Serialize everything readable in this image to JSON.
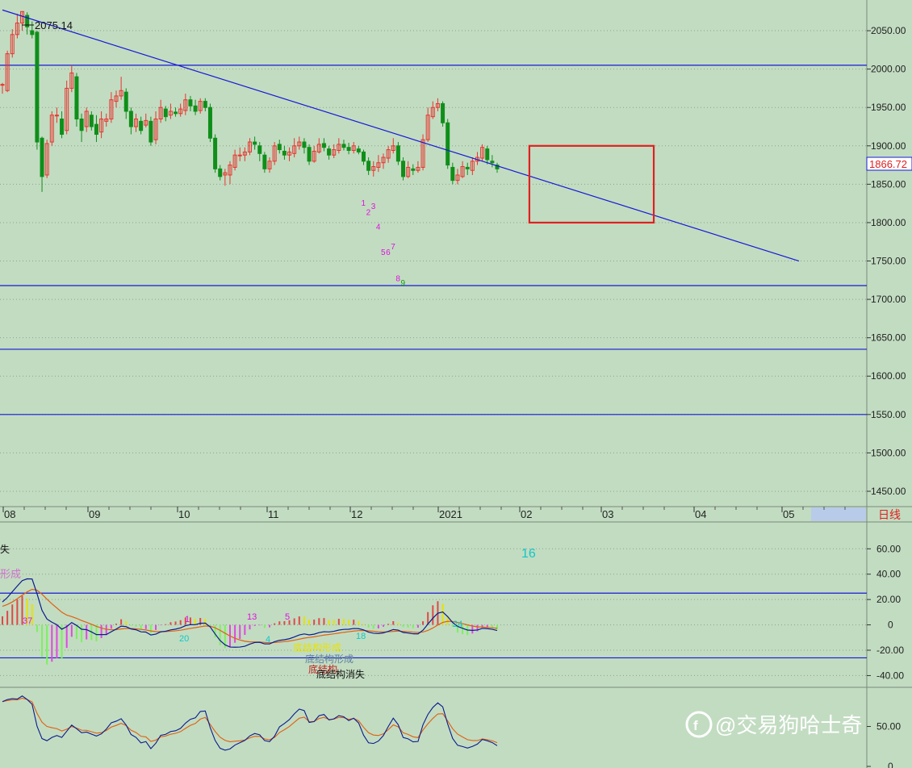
{
  "colors": {
    "background": "#c2dcc1",
    "up": "#e8342f",
    "down": "#0f8f1a",
    "trendline": "#1818d8",
    "level_line": "#1818d8",
    "box": "#e02020",
    "grid": "#8fa08f",
    "axis_text": "#222222",
    "dif_line": "#0a1a90",
    "dea_line": "#e06010",
    "hist_pos": "#e8e200",
    "hist_pos_alt": "#e04848",
    "hist_neg": "#7df060",
    "hist_neg_alt": "#e048e0",
    "count_magenta": "#e010e0",
    "count_cyan": "#10c8c8",
    "price_tag_border": "#1818d8",
    "price_tag_text": "#e02020"
  },
  "chart_data": [
    {
      "type": "candlestick",
      "panel": "price",
      "period_label": "日线",
      "ylim": [
        1430,
        2090
      ],
      "y_ticks": [
        "2050.00",
        "2000.00",
        "1950.00",
        "1900.00",
        "1850.00",
        "1800.00",
        "1750.00",
        "1700.00",
        "1650.00",
        "1600.00",
        "1550.00",
        "1500.00",
        "1450.00"
      ],
      "x_tick_labels": [
        "08",
        "09",
        "10",
        "11",
        "12",
        "2021",
        "02",
        "03",
        "04",
        "05"
      ],
      "high_annotation": "2075.14",
      "last_price": "1866.72",
      "horizontal_levels": [
        2005,
        1718,
        1635,
        1550
      ],
      "trendline": {
        "from": [
          0,
          2077
        ],
        "to": [
          161,
          1750
        ]
      },
      "highlight_box": {
        "x_range": [
          107,
          131
        ],
        "y_range": [
          1900,
          1800
        ]
      },
      "td_counts": [
        {
          "label": "1",
          "bar": 73,
          "price": 1822,
          "color": "magenta"
        },
        {
          "label": "2",
          "bar": 74,
          "price": 1810,
          "color": "magenta"
        },
        {
          "label": "3",
          "bar": 75,
          "price": 1818,
          "color": "magenta"
        },
        {
          "label": "4",
          "bar": 76,
          "price": 1791,
          "color": "magenta"
        },
        {
          "label": "5",
          "bar": 77,
          "price": 1758,
          "color": "magenta"
        },
        {
          "label": "6",
          "bar": 78,
          "price": 1758,
          "color": "magenta"
        },
        {
          "label": "7",
          "bar": 79,
          "price": 1765,
          "color": "magenta"
        },
        {
          "label": "8",
          "bar": 80,
          "price": 1724,
          "color": "magenta"
        },
        {
          "label": "9",
          "bar": 81,
          "price": 1718,
          "color": "green"
        }
      ],
      "candles": [
        [
          1980,
          1980,
          1982,
          1968
        ],
        [
          1972,
          2020,
          2024,
          1970
        ],
        [
          2020,
          2045,
          2052,
          2015
        ],
        [
          2045,
          2060,
          2072,
          2040
        ],
        [
          2060,
          2075,
          2075,
          2050
        ],
        [
          2070,
          2055,
          2074,
          2045
        ],
        [
          2050,
          2045,
          2062,
          2040
        ],
        [
          2048,
          1905,
          2050,
          1895
        ],
        [
          1910,
          1860,
          1912,
          1840
        ],
        [
          1862,
          1903,
          1908,
          1858
        ],
        [
          1905,
          1940,
          1945,
          1900
        ],
        [
          1940,
          1940,
          1950,
          1930
        ],
        [
          1935,
          1915,
          1945,
          1910
        ],
        [
          1920,
          1975,
          1985,
          1915
        ],
        [
          1975,
          1995,
          2005,
          1970
        ],
        [
          1990,
          1935,
          1995,
          1925
        ],
        [
          1935,
          1920,
          1942,
          1905
        ],
        [
          1925,
          1945,
          1950,
          1918
        ],
        [
          1940,
          1925,
          1945,
          1920
        ],
        [
          1928,
          1915,
          1940,
          1905
        ],
        [
          1918,
          1935,
          1945,
          1910
        ],
        [
          1932,
          1935,
          1942,
          1925
        ],
        [
          1935,
          1960,
          1970,
          1930
        ],
        [
          1958,
          1965,
          1972,
          1950
        ],
        [
          1965,
          1972,
          1990,
          1960
        ],
        [
          1970,
          1945,
          1975,
          1935
        ],
        [
          1945,
          1925,
          1950,
          1915
        ],
        [
          1925,
          1935,
          1942,
          1918
        ],
        [
          1932,
          1920,
          1938,
          1915
        ],
        [
          1927,
          1933,
          1942,
          1924
        ],
        [
          1932,
          1905,
          1938,
          1900
        ],
        [
          1908,
          1935,
          1945,
          1902
        ],
        [
          1935,
          1950,
          1960,
          1930
        ],
        [
          1948,
          1938,
          1952,
          1932
        ],
        [
          1940,
          1945,
          1955,
          1935
        ],
        [
          1944,
          1942,
          1950,
          1938
        ],
        [
          1942,
          1948,
          1955,
          1938
        ],
        [
          1946,
          1960,
          1968,
          1940
        ],
        [
          1960,
          1952,
          1965,
          1945
        ],
        [
          1952,
          1945,
          1960,
          1940
        ],
        [
          1946,
          1958,
          1962,
          1942
        ],
        [
          1958,
          1950,
          1962,
          1945
        ],
        [
          1950,
          1910,
          1955,
          1905
        ],
        [
          1910,
          1870,
          1915,
          1865
        ],
        [
          1870,
          1860,
          1875,
          1855
        ],
        [
          1862,
          1865,
          1870,
          1848
        ],
        [
          1862,
          1875,
          1880,
          1850
        ],
        [
          1872,
          1888,
          1895,
          1868
        ],
        [
          1888,
          1888,
          1898,
          1880
        ],
        [
          1888,
          1892,
          1898,
          1880
        ],
        [
          1892,
          1905,
          1910,
          1888
        ],
        [
          1905,
          1902,
          1912,
          1895
        ],
        [
          1900,
          1890,
          1905,
          1880
        ],
        [
          1888,
          1870,
          1892,
          1865
        ],
        [
          1870,
          1880,
          1885,
          1865
        ],
        [
          1880,
          1900,
          1905,
          1875
        ],
        [
          1902,
          1895,
          1908,
          1890
        ],
        [
          1893,
          1888,
          1900,
          1882
        ],
        [
          1888,
          1892,
          1898,
          1880
        ],
        [
          1890,
          1900,
          1910,
          1885
        ],
        [
          1900,
          1905,
          1912,
          1895
        ],
        [
          1905,
          1898,
          1910,
          1890
        ],
        [
          1898,
          1880,
          1902,
          1875
        ],
        [
          1880,
          1893,
          1900,
          1878
        ],
        [
          1892,
          1902,
          1910,
          1890
        ],
        [
          1903,
          1898,
          1910,
          1893
        ],
        [
          1896,
          1888,
          1900,
          1882
        ],
        [
          1888,
          1895,
          1902,
          1884
        ],
        [
          1894,
          1902,
          1910,
          1890
        ],
        [
          1902,
          1898,
          1908,
          1894
        ],
        [
          1898,
          1894,
          1904,
          1889
        ],
        [
          1894,
          1900,
          1905,
          1890
        ],
        [
          1896,
          1892,
          1900,
          1889
        ],
        [
          1892,
          1880,
          1895,
          1875
        ],
        [
          1880,
          1868,
          1885,
          1862
        ],
        [
          1868,
          1873,
          1880,
          1860
        ],
        [
          1872,
          1878,
          1888,
          1866
        ],
        [
          1878,
          1885,
          1890,
          1870
        ],
        [
          1884,
          1895,
          1900,
          1878
        ],
        [
          1894,
          1900,
          1910,
          1890
        ],
        [
          1900,
          1880,
          1905,
          1875
        ],
        [
          1880,
          1860,
          1885,
          1855
        ],
        [
          1860,
          1872,
          1880,
          1858
        ],
        [
          1870,
          1868,
          1876,
          1862
        ],
        [
          1868,
          1872,
          1880,
          1865
        ],
        [
          1872,
          1908,
          1915,
          1868
        ],
        [
          1908,
          1940,
          1950,
          1905
        ],
        [
          1938,
          1950,
          1958,
          1935
        ],
        [
          1950,
          1955,
          1962,
          1945
        ],
        [
          1955,
          1930,
          1958,
          1925
        ],
        [
          1930,
          1875,
          1935,
          1870
        ],
        [
          1872,
          1855,
          1878,
          1850
        ],
        [
          1855,
          1862,
          1870,
          1850
        ],
        [
          1860,
          1873,
          1880,
          1858
        ],
        [
          1872,
          1870,
          1878,
          1862
        ],
        [
          1868,
          1880,
          1885,
          1862
        ],
        [
          1880,
          1885,
          1892,
          1875
        ],
        [
          1884,
          1898,
          1902,
          1880
        ],
        [
          1896,
          1882,
          1900,
          1876
        ],
        [
          1880,
          1878,
          1888,
          1872
        ],
        [
          1875,
          1870,
          1878,
          1865
        ]
      ]
    },
    {
      "type": "macd",
      "panel": "macd",
      "ylim": [
        -48,
        78
      ],
      "y_ticks": [
        "60.00",
        "40.00",
        "20.00",
        "0",
        "-20.00",
        "-40.00"
      ],
      "reference_levels": [
        25,
        -26
      ],
      "counts": [
        {
          "label": "37",
          "color": "magenta"
        },
        {
          "label": "1",
          "color": "magenta"
        },
        {
          "label": "13",
          "color": "magenta"
        },
        {
          "label": "5",
          "color": "magenta"
        },
        {
          "label": "20",
          "color": "cyan"
        },
        {
          "label": "4",
          "color": "cyan"
        },
        {
          "label": "18",
          "color": "cyan"
        },
        {
          "label": "24",
          "color": "cyan"
        },
        {
          "label": "16",
          "color": "cyan"
        }
      ],
      "annotations": [
        "底结构形成",
        "底结构",
        "底结构消失",
        "形成",
        "失"
      ]
    },
    {
      "type": "line",
      "panel": "oscillator",
      "ylim": [
        0,
        95
      ],
      "y_ticks": [
        "50.00",
        "0"
      ]
    }
  ],
  "watermark": "@交易狗哈士奇"
}
